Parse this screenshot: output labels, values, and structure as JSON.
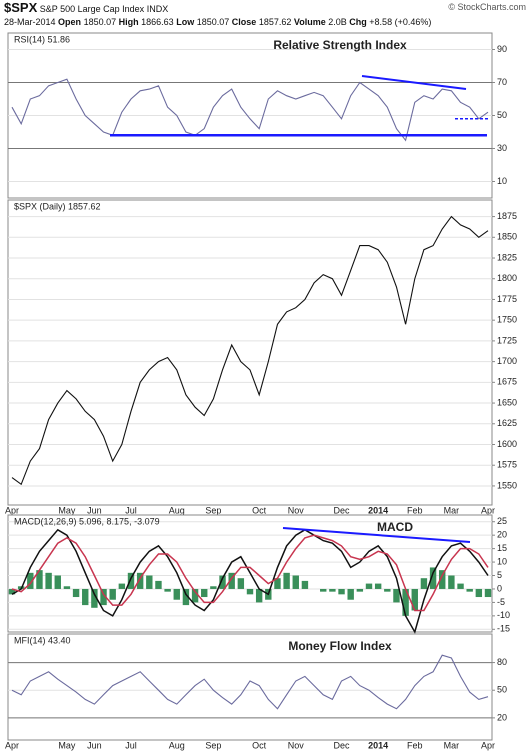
{
  "header": {
    "symbol": "$SPX",
    "name": "S&P 500 Large Cap Index",
    "exchange": "INDX",
    "date": "28-Mar-2014",
    "fields": [
      {
        "label": "Open",
        "value": "1850.07"
      },
      {
        "label": "High",
        "value": "1866.63"
      },
      {
        "label": "Low",
        "value": "1850.07"
      },
      {
        "label": "Close",
        "value": "1857.62"
      },
      {
        "label": "Volume",
        "value": "2.0B"
      },
      {
        "label": "Chg",
        "value": "+8.58 (+0.46%)"
      }
    ],
    "copyright": "© StockCharts.com"
  },
  "chart_data": [
    {
      "type": "line",
      "label": "RSI(14) 51.86",
      "annotation": "Relative Strength Index",
      "ylim": [
        0,
        100
      ],
      "yticks": [
        90,
        70,
        50,
        30,
        10
      ],
      "levels": [
        70,
        30
      ],
      "series": [
        {
          "name": "RSI(14)",
          "color": "#6b6b9e",
          "values": [
            55,
            45,
            60,
            62,
            68,
            70,
            72,
            60,
            50,
            45,
            40,
            38,
            52,
            60,
            65,
            66,
            68,
            55,
            50,
            40,
            38,
            42,
            55,
            62,
            66,
            55,
            48,
            42,
            60,
            65,
            62,
            60,
            62,
            64,
            62,
            55,
            48,
            62,
            70,
            66,
            62,
            55,
            42,
            35,
            58,
            62,
            60,
            66,
            65,
            58,
            55,
            48,
            52
          ]
        }
      ]
    },
    {
      "type": "line",
      "label": "$SPX (Daily) 1857.62",
      "ylim": [
        1527,
        1895
      ],
      "yticks": [
        1875,
        1850,
        1825,
        1800,
        1775,
        1750,
        1725,
        1700,
        1675,
        1650,
        1625,
        1600,
        1575,
        1550
      ],
      "categories": [
        "Apr",
        null,
        null,
        null,
        null,
        null,
        "May",
        null,
        null,
        "Jun",
        null,
        null,
        null,
        "Jul",
        null,
        null,
        null,
        null,
        "Aug",
        null,
        null,
        null,
        "Sep",
        null,
        null,
        null,
        null,
        "Oct",
        null,
        null,
        null,
        "Nov",
        null,
        null,
        null,
        null,
        "Dec",
        null,
        null,
        null,
        "2014",
        null,
        null,
        null,
        "Feb",
        null,
        null,
        null,
        "Mar",
        null,
        null,
        null,
        "Apr"
      ],
      "series": [
        {
          "name": "$SPX",
          "color": "#111111",
          "values": [
            1560,
            1552,
            1580,
            1595,
            1630,
            1650,
            1665,
            1655,
            1640,
            1630,
            1610,
            1580,
            1600,
            1640,
            1675,
            1690,
            1700,
            1705,
            1690,
            1660,
            1645,
            1635,
            1655,
            1690,
            1720,
            1700,
            1690,
            1660,
            1700,
            1745,
            1760,
            1765,
            1775,
            1795,
            1805,
            1800,
            1780,
            1810,
            1840,
            1840,
            1835,
            1820,
            1790,
            1745,
            1800,
            1835,
            1840,
            1860,
            1875,
            1865,
            1860,
            1850,
            1858
          ]
        }
      ]
    },
    {
      "type": "line",
      "label": "MACD(12,26,9) 5.096, 8.175, -3.079",
      "annotation": "MACD",
      "ylim": [
        -16,
        27.5
      ],
      "yticks": [
        25,
        20,
        15,
        10,
        5,
        0,
        -5,
        -10,
        -15
      ],
      "series": [
        {
          "name": "Histogram",
          "type": "bar",
          "color": "#3a8f5a",
          "values": [
            -2,
            1,
            6,
            7,
            6,
            5,
            1,
            -3,
            -6,
            -7,
            -6,
            -4,
            2,
            6,
            6,
            5,
            3,
            -1,
            -4,
            -6,
            -5,
            -3,
            1,
            5,
            6,
            4,
            -2,
            -5,
            -4,
            4,
            6,
            5,
            3,
            0,
            -1,
            -1,
            -2,
            -4,
            -1,
            2,
            2,
            -1,
            -5,
            -10,
            -8,
            4,
            8,
            7,
            5,
            2,
            -1,
            -3,
            -3
          ]
        },
        {
          "name": "MACD",
          "color": "#111111",
          "values": [
            -2,
            0,
            8,
            14,
            18,
            22,
            20,
            14,
            6,
            -2,
            -8,
            -10,
            -4,
            4,
            10,
            14,
            16,
            12,
            6,
            -2,
            -6,
            -8,
            -4,
            4,
            10,
            12,
            6,
            0,
            -2,
            8,
            16,
            20,
            22,
            20,
            18,
            17,
            14,
            8,
            10,
            14,
            16,
            12,
            4,
            -10,
            -16,
            -4,
            6,
            12,
            16,
            17,
            14,
            10,
            5
          ]
        },
        {
          "name": "Signal",
          "color": "#c8354f",
          "values": [
            0,
            -1,
            2,
            7,
            12,
            17,
            19,
            17,
            12,
            5,
            -2,
            -6,
            -6,
            -2,
            4,
            9,
            13,
            13,
            10,
            4,
            -1,
            -5,
            -5,
            -1,
            4,
            8,
            8,
            5,
            2,
            4,
            10,
            15,
            19,
            20,
            19,
            18,
            16,
            12,
            11,
            12,
            14,
            13,
            9,
            0,
            -8,
            -8,
            -2,
            5,
            11,
            15,
            15,
            13,
            8
          ]
        }
      ]
    },
    {
      "type": "line",
      "label": "MFI(14) 43.40",
      "annotation": "Money Flow Index",
      "ylim": [
        -4,
        111
      ],
      "yticks": [
        80,
        50,
        20
      ],
      "levels": [
        80,
        20
      ],
      "categories": [
        "Apr",
        null,
        null,
        null,
        null,
        null,
        "May",
        null,
        null,
        "Jun",
        null,
        null,
        null,
        "Jul",
        null,
        null,
        null,
        null,
        "Aug",
        null,
        null,
        null,
        "Sep",
        null,
        null,
        null,
        null,
        "Oct",
        null,
        null,
        null,
        "Nov",
        null,
        null,
        null,
        null,
        "Dec",
        null,
        null,
        null,
        "2014",
        null,
        null,
        null,
        "Feb",
        null,
        null,
        null,
        "Mar",
        null,
        null,
        null,
        "Apr"
      ],
      "series": [
        {
          "name": "MFI(14)",
          "color": "#6b6b9e",
          "values": [
            50,
            45,
            60,
            65,
            70,
            62,
            55,
            48,
            40,
            35,
            45,
            55,
            60,
            65,
            70,
            60,
            50,
            40,
            35,
            45,
            55,
            62,
            50,
            42,
            35,
            45,
            60,
            55,
            40,
            30,
            45,
            60,
            65,
            55,
            45,
            40,
            60,
            65,
            55,
            50,
            42,
            35,
            30,
            40,
            55,
            65,
            70,
            88,
            85,
            65,
            48,
            40,
            43
          ]
        }
      ]
    }
  ]
}
